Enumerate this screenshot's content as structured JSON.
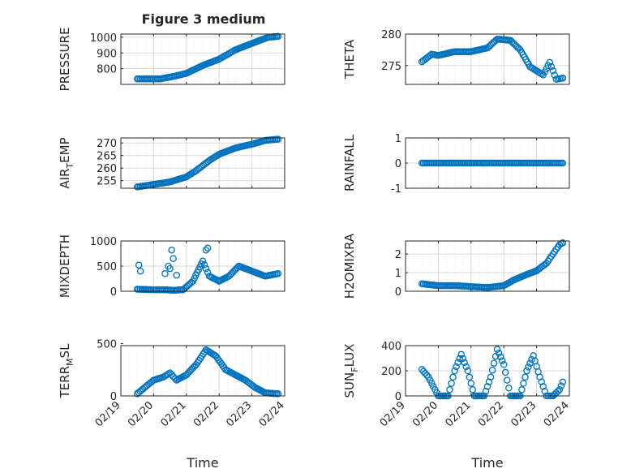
{
  "figure": {
    "title": "Figure 3 medium",
    "marker_color": "#0072BD",
    "axis_color": "#262626",
    "grid_color": "#d9d9d9"
  },
  "chart_data": [
    {
      "type": "scatter",
      "ylabel": "PRESSURE",
      "ylabel_sub": null,
      "xlabel": "",
      "xlim": [
        0,
        5
      ],
      "ylim": [
        700,
        1020
      ],
      "yticks": [
        800,
        900,
        1000
      ],
      "xticks": [
        0,
        1,
        2,
        3,
        4,
        5
      ],
      "xticklabels": [],
      "grid": true,
      "keypoints": [
        [
          0.5,
          735
        ],
        [
          0.9,
          735
        ],
        [
          1.2,
          735
        ],
        [
          1.6,
          750
        ],
        [
          2,
          770
        ],
        [
          2.5,
          820
        ],
        [
          3,
          860
        ],
        [
          3.5,
          920
        ],
        [
          4,
          960
        ],
        [
          4.5,
          1000
        ],
        [
          4.8,
          1005
        ]
      ]
    },
    {
      "type": "scatter",
      "ylabel": "THETA",
      "ylabel_sub": null,
      "xlabel": "",
      "xlim": [
        0,
        5
      ],
      "ylim": [
        272,
        280
      ],
      "yticks": [
        275,
        280
      ],
      "xticks": [
        0,
        1,
        2,
        3,
        4,
        5
      ],
      "xticklabels": [],
      "grid": true,
      "keypoints": [
        [
          0.5,
          275.6
        ],
        [
          0.8,
          276.8
        ],
        [
          1.0,
          276.6
        ],
        [
          1.5,
          277.2
        ],
        [
          2.0,
          277.2
        ],
        [
          2.5,
          277.8
        ],
        [
          2.8,
          279.2
        ],
        [
          3.2,
          279.0
        ],
        [
          3.5,
          277.5
        ],
        [
          3.8,
          274.8
        ],
        [
          4.2,
          273.5
        ],
        [
          4.4,
          275.5
        ],
        [
          4.6,
          272.8
        ],
        [
          4.8,
          273.0
        ]
      ]
    },
    {
      "type": "scatter",
      "ylabel": "AIR",
      "ylabel_sub": "T",
      "ylabel_suffix": "EMP",
      "xlabel": "",
      "xlim": [
        0,
        5
      ],
      "ylim": [
        252,
        272
      ],
      "yticks": [
        255,
        260,
        265,
        270
      ],
      "xticks": [
        0,
        1,
        2,
        3,
        4,
        5
      ],
      "xticklabels": [],
      "grid": true,
      "keypoints": [
        [
          0.5,
          252.5
        ],
        [
          1.0,
          253.5
        ],
        [
          1.5,
          254.5
        ],
        [
          2.0,
          256.5
        ],
        [
          2.3,
          259
        ],
        [
          2.7,
          263
        ],
        [
          3.0,
          265.5
        ],
        [
          3.5,
          268
        ],
        [
          4.0,
          269.5
        ],
        [
          4.4,
          271
        ],
        [
          4.8,
          271.5
        ]
      ]
    },
    {
      "type": "scatter",
      "ylabel": "RAINFALL",
      "ylabel_sub": null,
      "xlabel": "",
      "xlim": [
        0,
        5
      ],
      "ylim": [
        -1,
        1
      ],
      "yticks": [
        -1,
        0,
        1
      ],
      "xticks": [
        0,
        1,
        2,
        3,
        4,
        5
      ],
      "xticklabels": [],
      "grid": true,
      "keypoints": [
        [
          0.5,
          0
        ],
        [
          4.8,
          0
        ]
      ]
    },
    {
      "type": "scatter",
      "ylabel": "MIXDEPTH",
      "ylabel_sub": null,
      "xlabel": "",
      "xlim": [
        0,
        5
      ],
      "ylim": [
        0,
        1000
      ],
      "yticks": [
        0,
        500,
        1000
      ],
      "xticks": [
        0,
        1,
        2,
        3,
        4,
        5
      ],
      "xticklabels": [],
      "grid": true,
      "keypoints": [
        [
          0.5,
          40
        ],
        [
          1.0,
          30
        ],
        [
          1.3,
          30
        ],
        [
          1.6,
          20
        ],
        [
          1.9,
          30
        ],
        [
          2.2,
          200
        ],
        [
          2.5,
          600
        ],
        [
          2.7,
          300
        ],
        [
          3.0,
          200
        ],
        [
          3.3,
          300
        ],
        [
          3.6,
          500
        ],
        [
          4.0,
          400
        ],
        [
          4.4,
          300
        ],
        [
          4.8,
          350
        ]
      ],
      "extra_points": [
        [
          0.55,
          520
        ],
        [
          0.6,
          400
        ],
        [
          1.35,
          350
        ],
        [
          1.45,
          500
        ],
        [
          1.5,
          450
        ],
        [
          1.55,
          820
        ],
        [
          1.6,
          650
        ],
        [
          1.7,
          320
        ],
        [
          2.6,
          820
        ],
        [
          2.65,
          860
        ]
      ]
    },
    {
      "type": "scatter",
      "ylabel": "H2OMIXRA",
      "ylabel_sub": null,
      "xlabel": "",
      "xlim": [
        0,
        5
      ],
      "ylim": [
        0,
        2.7
      ],
      "yticks": [
        0,
        1,
        2
      ],
      "xticks": [
        0,
        1,
        2,
        3,
        4,
        5
      ],
      "xticklabels": [],
      "grid": true,
      "keypoints": [
        [
          0.5,
          0.4
        ],
        [
          1.0,
          0.3
        ],
        [
          1.5,
          0.3
        ],
        [
          2.0,
          0.25
        ],
        [
          2.5,
          0.2
        ],
        [
          3.0,
          0.3
        ],
        [
          3.3,
          0.6
        ],
        [
          3.7,
          0.9
        ],
        [
          4.0,
          1.1
        ],
        [
          4.3,
          1.5
        ],
        [
          4.5,
          2.0
        ],
        [
          4.7,
          2.5
        ],
        [
          4.8,
          2.6
        ]
      ]
    },
    {
      "type": "scatter",
      "ylabel": "TERR",
      "ylabel_sub": "M",
      "ylabel_suffix": "SL",
      "xlabel": "Time",
      "xlim": [
        0,
        5
      ],
      "ylim": [
        0,
        480
      ],
      "yticks": [
        0,
        500
      ],
      "xticks": [
        0,
        1,
        2,
        3,
        4,
        5
      ],
      "xticklabels": [
        "02/19",
        "02/20",
        "02/21",
        "02/22",
        "02/23",
        "02/24"
      ],
      "grid": true,
      "keypoints": [
        [
          0.5,
          20
        ],
        [
          0.8,
          100
        ],
        [
          1.0,
          150
        ],
        [
          1.3,
          180
        ],
        [
          1.5,
          220
        ],
        [
          1.7,
          150
        ],
        [
          2.0,
          200
        ],
        [
          2.3,
          300
        ],
        [
          2.6,
          440
        ],
        [
          2.9,
          380
        ],
        [
          3.2,
          250
        ],
        [
          3.5,
          200
        ],
        [
          3.8,
          150
        ],
        [
          4.1,
          80
        ],
        [
          4.4,
          30
        ],
        [
          4.8,
          20
        ]
      ]
    },
    {
      "type": "scatter",
      "ylabel": "SUN",
      "ylabel_sub": "F",
      "ylabel_suffix": "LUX",
      "xlabel": "Time",
      "xlim": [
        0,
        5
      ],
      "ylim": [
        0,
        400
      ],
      "yticks": [
        0,
        200,
        400
      ],
      "xticks": [
        0,
        1,
        2,
        3,
        4,
        5
      ],
      "xticklabels": [
        "02/19",
        "02/20",
        "02/21",
        "02/22",
        "02/23",
        "02/24"
      ],
      "grid": true,
      "keypoints": [
        [
          0.5,
          210
        ],
        [
          0.7,
          150
        ],
        [
          0.9,
          50
        ],
        [
          1.0,
          0
        ],
        [
          1.3,
          0
        ],
        [
          1.5,
          200
        ],
        [
          1.7,
          330
        ],
        [
          1.9,
          200
        ],
        [
          2.1,
          0
        ],
        [
          2.4,
          0
        ],
        [
          2.6,
          150
        ],
        [
          2.8,
          370
        ],
        [
          3.0,
          250
        ],
        [
          3.2,
          0
        ],
        [
          3.5,
          0
        ],
        [
          3.7,
          200
        ],
        [
          3.9,
          320
        ],
        [
          4.1,
          150
        ],
        [
          4.3,
          0
        ],
        [
          4.5,
          0
        ],
        [
          4.7,
          50
        ],
        [
          4.8,
          110
        ]
      ]
    }
  ]
}
